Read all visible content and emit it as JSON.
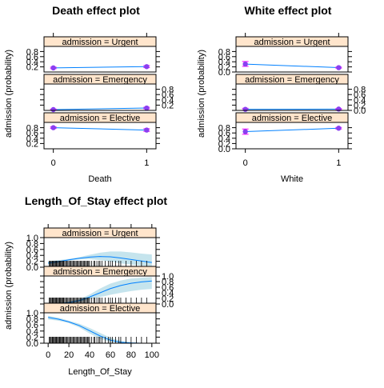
{
  "colors": {
    "strip": "#ffe5cc",
    "line": "#0080ff",
    "band": "#add8e6",
    "point": "#8a3ff0",
    "errorbar": "#ff00ff",
    "rug": "#000000"
  },
  "chart_data": [
    {
      "type": "line",
      "title": "Death effect plot",
      "xlabel": "Death",
      "ylabel": "admission (probability)",
      "x_ticks": [
        0,
        1
      ],
      "xlim": [
        -0.1,
        1.1
      ],
      "panels": [
        {
          "strip": "admission = Urgent",
          "ylim": [
            0.0,
            1.0
          ],
          "ticks": [
            "0.2",
            "0.4",
            "0.6",
            "0.8"
          ],
          "tick_values": [
            0.2,
            0.4,
            0.6,
            0.8
          ],
          "tick_side": "left",
          "x": [
            0,
            1
          ],
          "y": [
            0.16,
            0.21
          ],
          "lower": [
            0.13,
            0.17
          ],
          "upper": [
            0.19,
            0.25
          ],
          "markers": true
        },
        {
          "strip": "admission = Emergency",
          "ylim": [
            0.0,
            1.0
          ],
          "ticks": [
            "0.2",
            "0.4",
            "0.6",
            "0.8"
          ],
          "tick_values": [
            0.2,
            0.4,
            0.6,
            0.8
          ],
          "tick_side": "right",
          "x": [
            0,
            1
          ],
          "y": [
            0.03,
            0.09
          ],
          "lower": [
            0.02,
            0.06
          ],
          "upper": [
            0.05,
            0.12
          ],
          "markers": true
        },
        {
          "strip": "admission = Elective",
          "ylim": [
            0.0,
            1.0
          ],
          "ticks": [
            "0.2",
            "0.4",
            "0.6",
            "0.8"
          ],
          "tick_values": [
            0.2,
            0.4,
            0.6,
            0.8
          ],
          "tick_side": "left",
          "x": [
            0,
            1
          ],
          "y": [
            0.8,
            0.71
          ],
          "lower": [
            0.77,
            0.66
          ],
          "upper": [
            0.83,
            0.76
          ],
          "markers": true
        }
      ]
    },
    {
      "type": "line",
      "title": "White effect plot",
      "xlabel": "White",
      "ylabel": "admission (probability)",
      "x_ticks": [
        0,
        1
      ],
      "xlim": [
        -0.1,
        1.1
      ],
      "panels": [
        {
          "strip": "admission = Urgent",
          "ylim": [
            0.0,
            1.0
          ],
          "ticks": [
            "0.0",
            "0.2",
            "0.4",
            "0.6",
            "0.8"
          ],
          "tick_values": [
            0.0,
            0.2,
            0.4,
            0.6,
            0.8
          ],
          "tick_side": "left",
          "x": [
            0,
            1
          ],
          "y": [
            0.31,
            0.17
          ],
          "lower": [
            0.22,
            0.15
          ],
          "upper": [
            0.41,
            0.19
          ],
          "markers": true
        },
        {
          "strip": "admission = Emergency",
          "ylim": [
            0.0,
            1.0
          ],
          "ticks": [
            "0.0",
            "0.2",
            "0.4",
            "0.6",
            "0.8"
          ],
          "tick_values": [
            0.0,
            0.2,
            0.4,
            0.6,
            0.8
          ],
          "tick_side": "right",
          "x": [
            0,
            1
          ],
          "y": [
            0.04,
            0.05
          ],
          "lower": [
            0.01,
            0.03
          ],
          "upper": [
            0.08,
            0.07
          ],
          "markers": true
        },
        {
          "strip": "admission = Elective",
          "ylim": [
            0.0,
            1.0
          ],
          "ticks": [
            "0.0",
            "0.2",
            "0.4",
            "0.6",
            "0.8"
          ],
          "tick_values": [
            0.0,
            0.2,
            0.4,
            0.6,
            0.8
          ],
          "tick_side": "left",
          "x": [
            0,
            1
          ],
          "y": [
            0.65,
            0.78
          ],
          "lower": [
            0.55,
            0.75
          ],
          "upper": [
            0.75,
            0.81
          ],
          "markers": true
        }
      ]
    },
    {
      "type": "area",
      "title": "Length_Of_Stay effect plot",
      "xlabel": "Length_Of_Stay",
      "ylabel": "admission (probability)",
      "x_ticks": [
        0,
        20,
        40,
        60,
        80,
        100
      ],
      "xlim": [
        -4,
        104
      ],
      "rug": [
        1,
        2,
        2,
        3,
        3,
        4,
        4,
        5,
        5,
        6,
        6,
        7,
        7,
        8,
        8,
        9,
        9,
        10,
        10,
        11,
        11,
        12,
        12,
        13,
        13,
        14,
        14,
        15,
        15,
        16,
        17,
        18,
        19,
        20,
        21,
        22,
        23,
        24,
        25,
        26,
        27,
        28,
        29,
        30,
        31,
        32,
        33,
        34,
        35,
        36,
        37,
        38,
        39,
        40,
        42,
        44,
        45,
        47,
        49,
        50,
        52,
        55,
        58,
        60,
        62,
        65,
        68,
        70,
        75,
        80,
        85,
        90,
        95
      ],
      "panels": [
        {
          "strip": "admission = Urgent",
          "ylim": [
            0.0,
            1.0
          ],
          "ticks": [
            "0.0",
            "0.2",
            "0.4",
            "0.6",
            "0.8",
            "1.0"
          ],
          "tick_values": [
            0.0,
            0.2,
            0.4,
            0.6,
            0.8,
            1.0
          ],
          "tick_side": "left",
          "x": [
            0,
            10,
            20,
            30,
            40,
            50,
            60,
            70,
            80,
            90,
            100
          ],
          "y": [
            0.14,
            0.19,
            0.25,
            0.3,
            0.34,
            0.36,
            0.35,
            0.31,
            0.26,
            0.21,
            0.16
          ],
          "lower": [
            0.09,
            0.15,
            0.22,
            0.26,
            0.27,
            0.24,
            0.19,
            0.13,
            0.09,
            0.06,
            0.04
          ],
          "upper": [
            0.2,
            0.24,
            0.28,
            0.34,
            0.42,
            0.49,
            0.53,
            0.53,
            0.5,
            0.46,
            0.43
          ]
        },
        {
          "strip": "admission = Emergency",
          "ylim": [
            0.0,
            1.0
          ],
          "ticks": [
            "0.0",
            "0.2",
            "0.4",
            "0.6",
            "0.8",
            "1.0"
          ],
          "tick_values": [
            0.0,
            0.2,
            0.4,
            0.6,
            0.8,
            1.0
          ],
          "tick_side": "right",
          "x": [
            0,
            10,
            20,
            30,
            40,
            50,
            60,
            70,
            80,
            90,
            100
          ],
          "y": [
            0.01,
            0.02,
            0.05,
            0.12,
            0.25,
            0.4,
            0.55,
            0.66,
            0.74,
            0.79,
            0.82
          ],
          "lower": [
            0.0,
            0.01,
            0.03,
            0.08,
            0.17,
            0.25,
            0.33,
            0.4,
            0.46,
            0.51,
            0.54
          ],
          "upper": [
            0.03,
            0.05,
            0.09,
            0.17,
            0.34,
            0.55,
            0.73,
            0.84,
            0.91,
            0.94,
            0.96
          ]
        },
        {
          "strip": "admission = Elective",
          "ylim": [
            0.0,
            1.0
          ],
          "ticks": [
            "0.0",
            "0.2",
            "0.4",
            "0.6",
            "0.8",
            "1.0"
          ],
          "tick_values": [
            0.0,
            0.2,
            0.4,
            0.6,
            0.8,
            1.0
          ],
          "tick_side": "left",
          "x": [
            0,
            10,
            20,
            30,
            40,
            50,
            60,
            70,
            80,
            90,
            100
          ],
          "y": [
            0.85,
            0.79,
            0.7,
            0.58,
            0.41,
            0.24,
            0.1,
            0.03,
            0.01,
            0.0,
            0.0
          ],
          "lower": [
            0.78,
            0.74,
            0.66,
            0.52,
            0.32,
            0.14,
            0.04,
            0.01,
            0.0,
            0.0,
            0.0
          ],
          "upper": [
            0.9,
            0.84,
            0.74,
            0.64,
            0.5,
            0.34,
            0.18,
            0.08,
            0.03,
            0.01,
            0.0
          ]
        }
      ]
    }
  ]
}
